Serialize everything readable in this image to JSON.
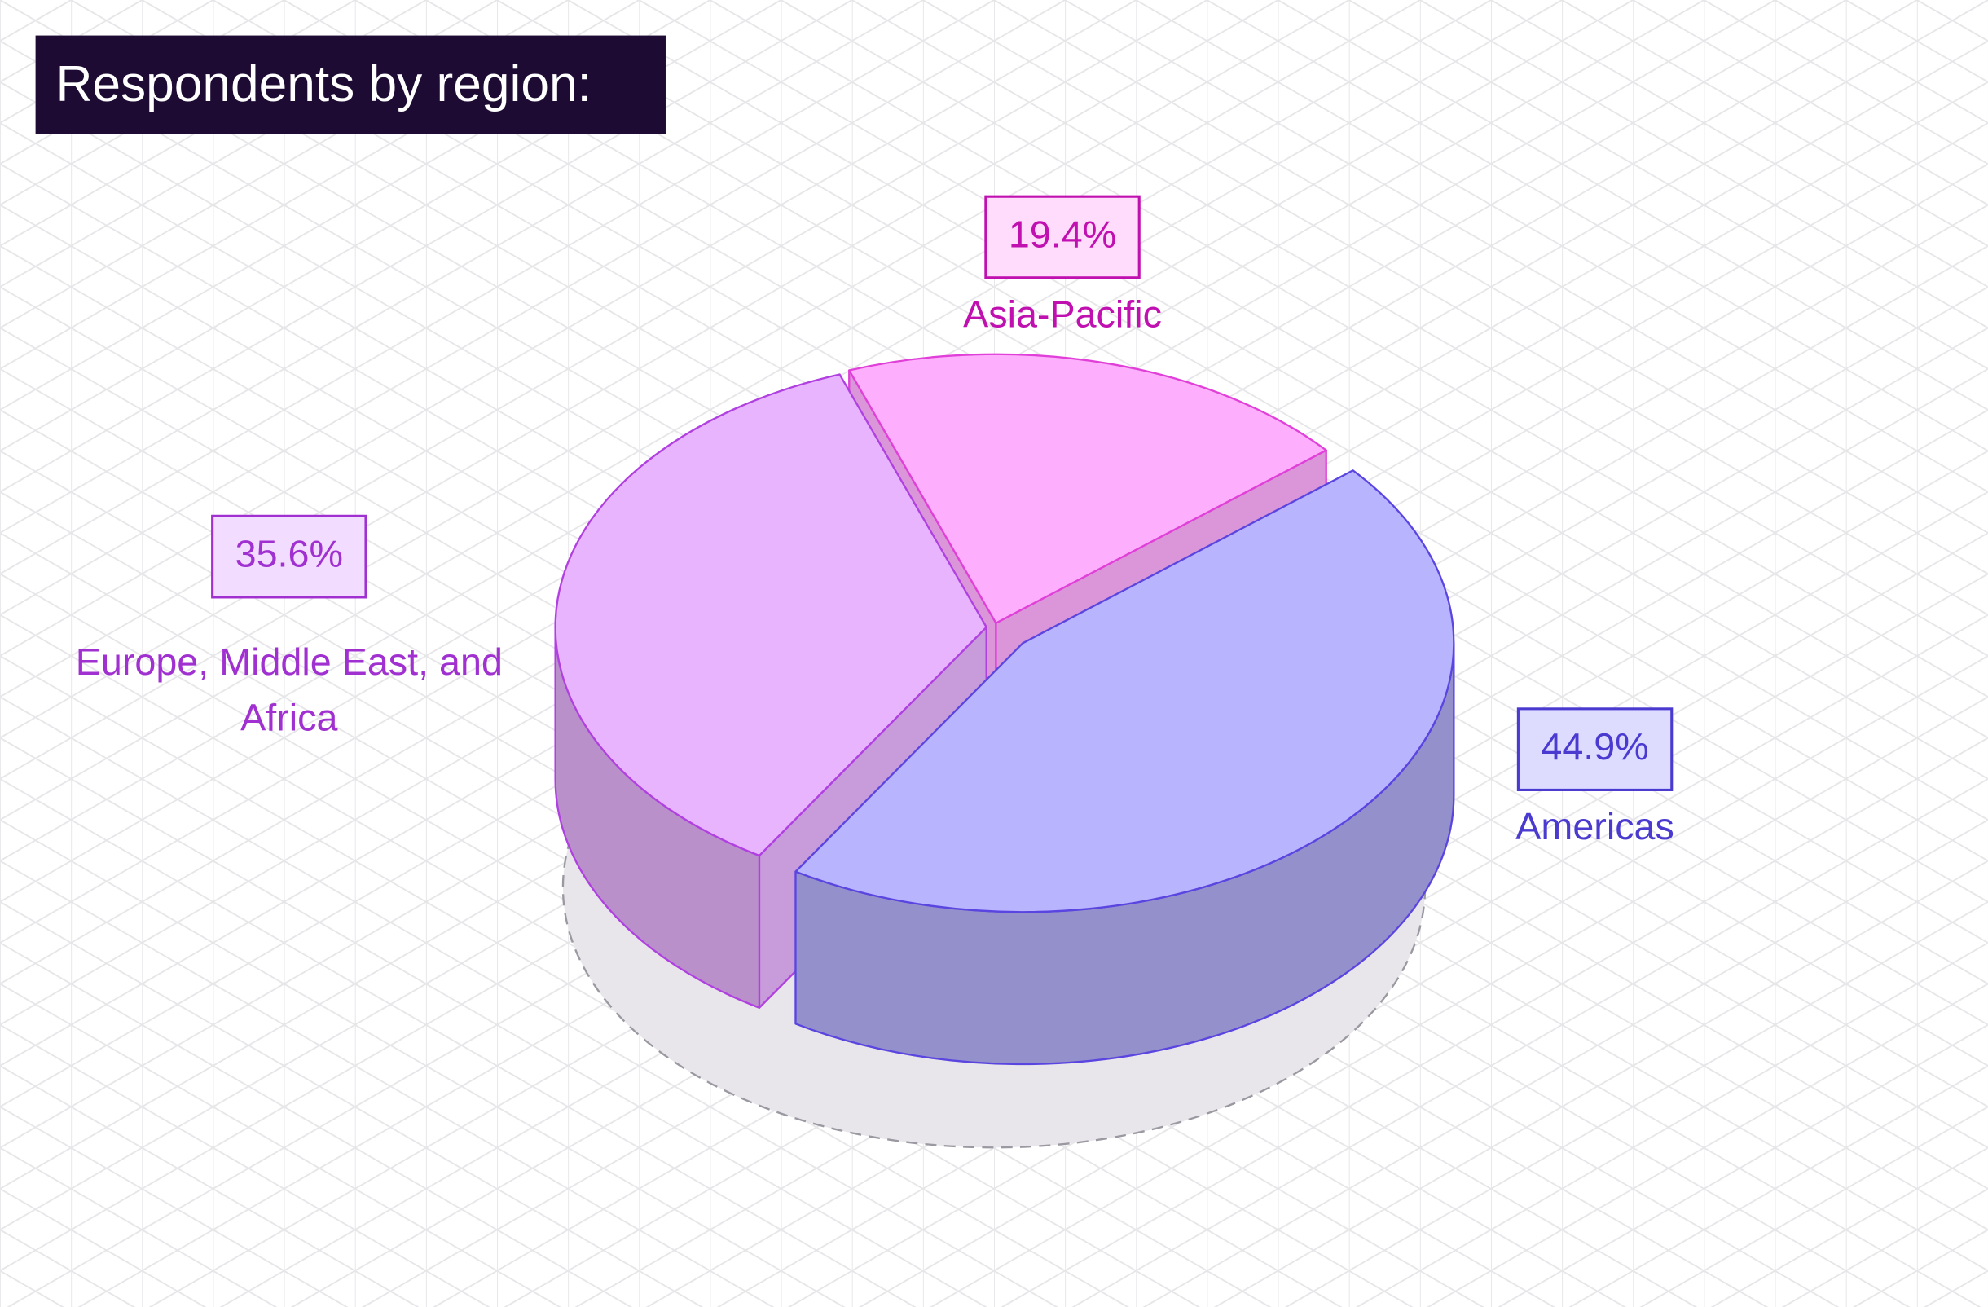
{
  "chart_data": {
    "type": "pie3d",
    "title": "Respondents by region:",
    "categories": [
      "Americas",
      "Europe, Middle East, and Africa",
      "Asia-Pacific"
    ],
    "values": [
      44.9,
      35.6,
      19.4
    ],
    "value_labels": [
      "44.9%",
      "35.6%",
      "19.4%"
    ],
    "colors": [
      "#b8b4fe",
      "#e8b4fe",
      "#fdaefc"
    ]
  }
}
